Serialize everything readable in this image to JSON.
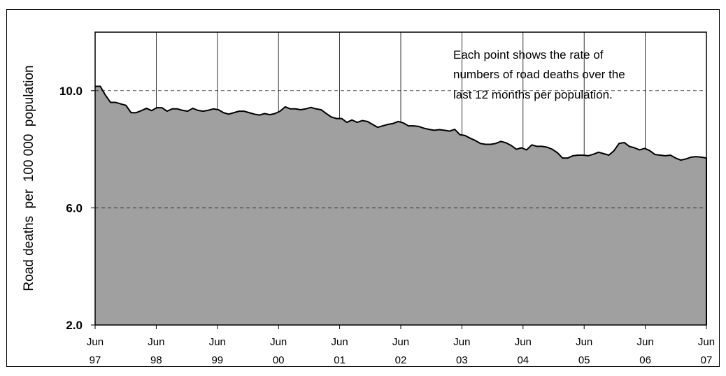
{
  "chart_data": {
    "type": "area",
    "ylabel": "Road deaths  per  100 000  population",
    "ylim": [
      2.0,
      12.0
    ],
    "y_ticks": [
      {
        "value": 2.0,
        "label": "2.0"
      },
      {
        "value": 6.0,
        "label": "6.0"
      },
      {
        "value": 10.0,
        "label": "10.0"
      }
    ],
    "x_ticks": [
      {
        "top": "Jun",
        "bottom": "97"
      },
      {
        "top": "Jun",
        "bottom": "98"
      },
      {
        "top": "Jun",
        "bottom": "99"
      },
      {
        "top": "Jun",
        "bottom": "00"
      },
      {
        "top": "Jun",
        "bottom": "01"
      },
      {
        "top": "Jun",
        "bottom": "02"
      },
      {
        "top": "Jun",
        "bottom": "03"
      },
      {
        "top": "Jun",
        "bottom": "04"
      },
      {
        "top": "Jun",
        "bottom": "05"
      },
      {
        "top": "Jun",
        "bottom": "06"
      },
      {
        "top": "Jun",
        "bottom": "07"
      }
    ],
    "x_start": "1997-06",
    "x_end": "2007-06",
    "annotation": [
      "Each point shows the rate of",
      "numbers of road deaths over the",
      "last 12 months per population."
    ],
    "grid": {
      "vertical": true,
      "horizontal": true
    },
    "colors": {
      "fill": "#a0a0a0",
      "line": "#000000",
      "border": "#000000"
    },
    "series": [
      {
        "values": [
          10.15,
          10.15,
          9.85,
          9.6,
          9.6,
          9.55,
          9.5,
          9.25,
          9.25,
          9.32,
          9.4,
          9.32,
          9.42,
          9.42,
          9.3,
          9.38,
          9.38,
          9.33,
          9.3,
          9.4,
          9.33,
          9.3,
          9.33,
          9.38,
          9.35,
          9.25,
          9.2,
          9.25,
          9.3,
          9.3,
          9.25,
          9.2,
          9.17,
          9.22,
          9.18,
          9.22,
          9.3,
          9.45,
          9.38,
          9.38,
          9.35,
          9.38,
          9.43,
          9.38,
          9.35,
          9.22,
          9.1,
          9.05,
          9.05,
          8.92,
          9.0,
          8.92,
          8.98,
          8.95,
          8.85,
          8.75,
          8.8,
          8.85,
          8.88,
          8.95,
          8.9,
          8.8,
          8.8,
          8.78,
          8.72,
          8.68,
          8.65,
          8.67,
          8.65,
          8.62,
          8.68,
          8.5,
          8.47,
          8.38,
          8.3,
          8.2,
          8.17,
          8.17,
          8.2,
          8.27,
          8.22,
          8.13,
          8.0,
          8.05,
          7.98,
          8.15,
          8.1,
          8.1,
          8.07,
          8.0,
          7.88,
          7.7,
          7.7,
          7.78,
          7.8,
          7.8,
          7.78,
          7.83,
          7.9,
          7.85,
          7.8,
          7.95,
          8.2,
          8.23,
          8.1,
          8.05,
          7.98,
          8.03,
          7.95,
          7.82,
          7.8,
          7.78,
          7.8,
          7.7,
          7.63,
          7.67,
          7.73,
          7.75,
          7.73,
          7.7
        ]
      }
    ]
  }
}
